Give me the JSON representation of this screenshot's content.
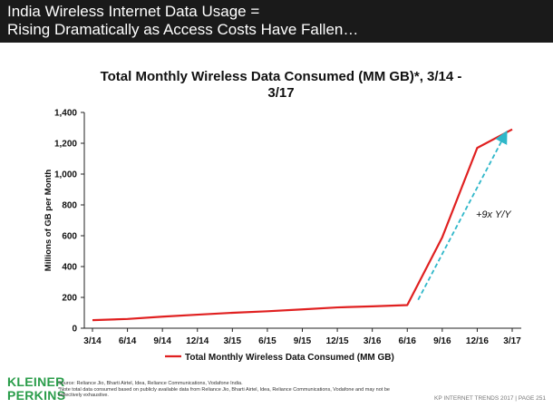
{
  "header": {
    "line1": "India Wireless Internet Data Usage =",
    "line2": "Rising Dramatically as Access Costs Have Fallen…"
  },
  "chart_data": {
    "type": "line",
    "title_line1": "Total Monthly Wireless Data Consumed (MM GB)*, 3/14 -",
    "title_line2": "3/17",
    "ylabel": "Millions of GB per Month",
    "xlabel": "",
    "ylim": [
      0,
      1400
    ],
    "yticks": [
      "0",
      "200",
      "400",
      "600",
      "800",
      "1,000",
      "1,200",
      "1,400"
    ],
    "categories": [
      "3/14",
      "6/14",
      "9/14",
      "12/14",
      "3/15",
      "6/15",
      "9/15",
      "12/15",
      "3/16",
      "6/16",
      "9/16",
      "12/16",
      "3/17"
    ],
    "series": [
      {
        "name": "Total Monthly Wireless Data Consumed (MM GB)",
        "color": "#e02020",
        "values": [
          52,
          60,
          75,
          88,
          100,
          110,
          122,
          135,
          142,
          150,
          590,
          1170,
          1290
        ]
      }
    ],
    "annotation": {
      "text": "+9x Y/Y",
      "color": "#2fb7c9",
      "arrow_from": {
        "category": "6/16",
        "value": 155
      },
      "arrow_to": {
        "category": "3/17",
        "value": 1255
      }
    },
    "legend": "bottom-center",
    "grid": false
  },
  "footer": {
    "logo_line1": "KLEINER",
    "logo_line2": "PERKINS",
    "source": "Source: Reliance Jio, Bharti Airtel, Idea, Reliance Communications, Vodafone India.",
    "note": "*Note total data consumed based on publicly available data from Reliance Jio, Bharti Airtel, Idea, Reliance Communications, Vodafone and may not be collectively exhaustive.",
    "right_text": "KP INTERNET TRENDS 2017  |  PAGE 251"
  },
  "colors": {
    "header_bg": "#1a1a1a",
    "logo": "#2a9d4a"
  }
}
